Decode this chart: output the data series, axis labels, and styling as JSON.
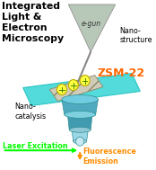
{
  "bg_color": "#ffffff",
  "title_lines": [
    "Integrated",
    "Light &",
    "Electron",
    "Microscopy"
  ],
  "title_fontsize": 7.8,
  "title_color": "#000000",
  "label_egun": "e-gun",
  "label_nanostructure": "Nano-\nstructure",
  "label_nanocatalysis": "Nano-\ncatalysis",
  "label_zsm22": "ZSM-22",
  "label_laser": "Laser Excitation",
  "label_fluor": "Fluorescence\nEmission",
  "laser_color": "#00ff00",
  "fluor_color": "#ff8c00",
  "egun_fill": "#b8c8b8",
  "egun_edge": "#909090",
  "plane_fill": "#40d8d8",
  "plane_fill2": "#20c0c0",
  "crystal_fill": "#d0ccb8",
  "crystal_edge": "#888868",
  "dot_color": "#ffff44",
  "dot_edge": "#bbaa00",
  "needle_color": "#888888",
  "scope_top_fill": "#70cce0",
  "scope_body_fill": "#50aabf",
  "scope_mid_fill": "#7fd0e0",
  "scope_low_fill": "#409ab0",
  "scope_bot_fill": "#90c8d8",
  "scope_edge": "#309090",
  "zsm22_color": "#ff6600",
  "text_color": "#000000"
}
